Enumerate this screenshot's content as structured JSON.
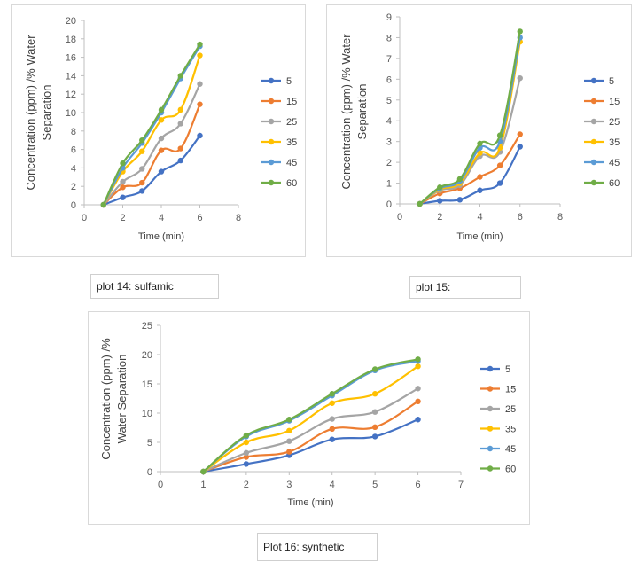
{
  "chart_data": [
    {
      "type": "line",
      "caption": "plot 14: sulfamic",
      "xlabel": "Time (min)",
      "ylabel_lines": [
        "Concentration (ppm) /% Water",
        "Separation"
      ],
      "xlim": [
        0,
        8
      ],
      "xstep": 2,
      "ylim": [
        0,
        20
      ],
      "ystep": 2,
      "x": [
        1,
        2,
        3,
        4,
        5,
        6
      ],
      "series": [
        {
          "name": "5",
          "color": "#4472c4",
          "values": [
            0,
            0.8,
            1.5,
            3.6,
            4.8,
            7.5
          ]
        },
        {
          "name": "15",
          "color": "#ed7d31",
          "values": [
            0,
            1.9,
            2.4,
            5.9,
            6.1,
            10.9
          ]
        },
        {
          "name": "25",
          "color": "#a5a5a5",
          "values": [
            0,
            2.5,
            3.9,
            7.2,
            8.8,
            13.1
          ]
        },
        {
          "name": "35",
          "color": "#ffc000",
          "values": [
            0,
            3.6,
            5.8,
            9.2,
            10.3,
            16.2
          ]
        },
        {
          "name": "45",
          "color": "#5b9bd5",
          "values": [
            0,
            4.0,
            6.7,
            10.0,
            13.7,
            17.2
          ]
        },
        {
          "name": "60",
          "color": "#70ad47",
          "values": [
            0,
            4.5,
            7.0,
            10.3,
            14.0,
            17.4
          ]
        }
      ]
    },
    {
      "type": "line",
      "caption": "plot 15:",
      "xlabel": "Time (min)",
      "ylabel_lines": [
        "Concentration (ppm) /% Water",
        "Separation"
      ],
      "xlim": [
        0,
        8
      ],
      "xstep": 2,
      "ylim": [
        0,
        9
      ],
      "ystep": 1,
      "x": [
        1,
        2,
        3,
        4,
        5,
        6
      ],
      "series": [
        {
          "name": "5",
          "color": "#4472c4",
          "values": [
            0,
            0.15,
            0.2,
            0.65,
            1.0,
            2.75
          ]
        },
        {
          "name": "15",
          "color": "#ed7d31",
          "values": [
            0,
            0.5,
            0.75,
            1.3,
            1.85,
            3.35
          ]
        },
        {
          "name": "25",
          "color": "#a5a5a5",
          "values": [
            0,
            0.65,
            0.9,
            2.3,
            2.5,
            6.05
          ]
        },
        {
          "name": "35",
          "color": "#ffc000",
          "values": [
            0,
            0.7,
            1.0,
            2.45,
            2.7,
            7.8
          ]
        },
        {
          "name": "45",
          "color": "#5b9bd5",
          "values": [
            0,
            0.75,
            1.1,
            2.7,
            3.0,
            8.0
          ]
        },
        {
          "name": "60",
          "color": "#70ad47",
          "values": [
            0,
            0.8,
            1.2,
            2.9,
            3.3,
            8.3
          ]
        }
      ]
    },
    {
      "type": "line",
      "caption": "Plot 16: synthetic",
      "xlabel": "Time (min)",
      "ylabel_lines": [
        "Concentration (ppm) /%",
        "Water Separation"
      ],
      "xlim": [
        0,
        7
      ],
      "xstep": 1,
      "ylim": [
        0,
        25
      ],
      "ystep": 5,
      "x": [
        1,
        2,
        3,
        4,
        5,
        6
      ],
      "series": [
        {
          "name": "5",
          "color": "#4472c4",
          "values": [
            0,
            1.3,
            2.8,
            5.5,
            6.0,
            8.9
          ]
        },
        {
          "name": "15",
          "color": "#ed7d31",
          "values": [
            0,
            2.5,
            3.4,
            7.3,
            7.6,
            12.0
          ]
        },
        {
          "name": "25",
          "color": "#a5a5a5",
          "values": [
            0,
            3.2,
            5.2,
            9.0,
            10.2,
            14.2
          ]
        },
        {
          "name": "35",
          "color": "#ffc000",
          "values": [
            0,
            5.0,
            7.0,
            11.7,
            13.3,
            18.0
          ]
        },
        {
          "name": "45",
          "color": "#5b9bd5",
          "values": [
            0,
            6.0,
            8.7,
            13.0,
            17.3,
            18.9
          ]
        },
        {
          "name": "60",
          "color": "#70ad47",
          "values": [
            0,
            6.2,
            8.9,
            13.3,
            17.5,
            19.2
          ]
        }
      ]
    }
  ]
}
